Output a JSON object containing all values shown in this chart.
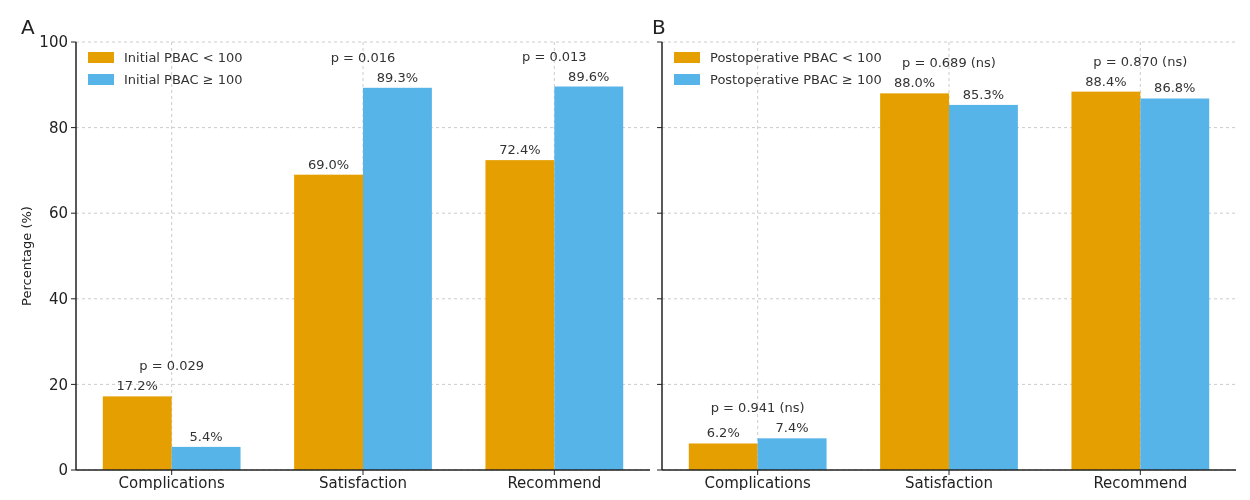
{
  "chart_data": [
    {
      "type": "bar",
      "title": "A",
      "ylabel": "Percentage (%)",
      "categories": [
        "Complications",
        "Satisfaction",
        "Recommend"
      ],
      "series": [
        {
          "name": "Initial PBAC < 100",
          "color": "#e69f00",
          "values": [
            17.2,
            69.0,
            72.4
          ],
          "value_labels": [
            "17.2%",
            "69.0%",
            "72.4%"
          ]
        },
        {
          "name": "Initial PBAC ≥ 100",
          "color": "#56b4e9",
          "values": [
            5.4,
            89.3,
            89.6
          ],
          "value_labels": [
            "5.4%",
            "89.3%",
            "89.6%"
          ]
        }
      ],
      "annotations": [
        "p = 0.029",
        "p = 0.016",
        "p = 0.013"
      ],
      "ylim": [
        0,
        100
      ],
      "yticks": [
        0,
        20,
        40,
        60,
        80,
        100
      ],
      "grid": true,
      "legend": "top left"
    },
    {
      "type": "bar",
      "title": "B",
      "categories": [
        "Complications",
        "Satisfaction",
        "Recommend"
      ],
      "series": [
        {
          "name": "Postoperative PBAC < 100",
          "color": "#e69f00",
          "values": [
            6.2,
            88.0,
            88.4
          ],
          "value_labels": [
            "6.2%",
            "88.0%",
            "88.4%"
          ]
        },
        {
          "name": "Postoperative PBAC ≥ 100",
          "color": "#56b4e9",
          "values": [
            7.4,
            85.3,
            86.8
          ],
          "value_labels": [
            "7.4%",
            "85.3%",
            "86.8%"
          ]
        }
      ],
      "annotations": [
        "p = 0.941 (ns)",
        "p = 0.689 (ns)",
        "p = 0.870 (ns)"
      ],
      "ylim": [
        0,
        100
      ],
      "yticks": [
        0,
        20,
        40,
        60,
        80,
        100
      ],
      "grid": true,
      "legend": "top left",
      "tick_labels": "x"
    }
  ]
}
